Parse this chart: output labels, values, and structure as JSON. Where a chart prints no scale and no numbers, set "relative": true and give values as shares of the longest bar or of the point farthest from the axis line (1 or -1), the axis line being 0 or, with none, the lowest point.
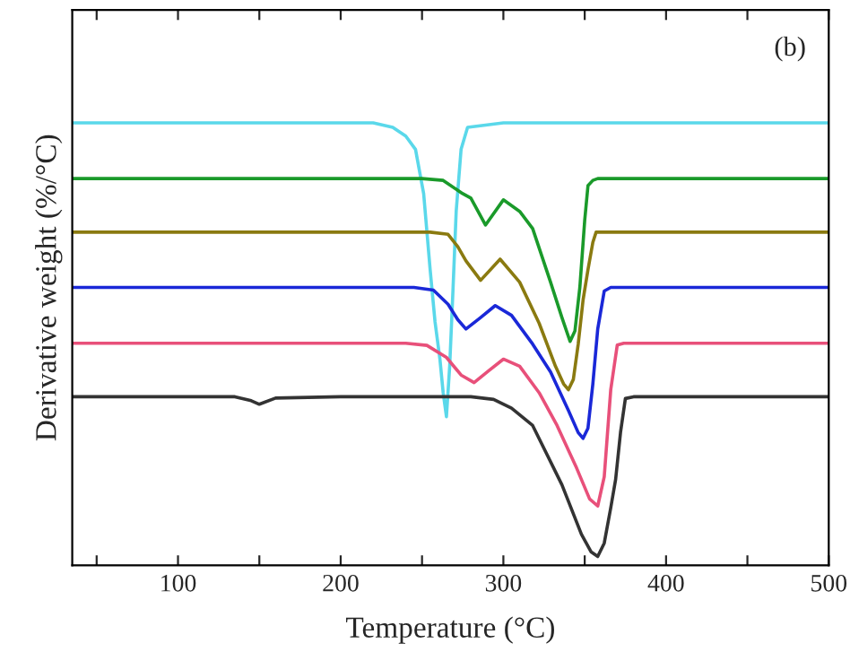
{
  "chart_data": {
    "type": "line",
    "relative": true,
    "xlabel": "Temperature (°C)",
    "ylabel": "Derivative weight (%/°C)",
    "annotations": [
      "(b)"
    ],
    "xlim": [
      35,
      500
    ],
    "xticks": [
      {
        "value": 50,
        "label": null
      },
      100,
      {
        "value": 150,
        "label": null
      },
      200,
      {
        "value": 250,
        "label": null
      },
      300,
      {
        "value": 350,
        "label": null
      },
      400,
      {
        "value": 450,
        "label": null
      },
      500
    ],
    "grid": false,
    "legend": false,
    "marker": "none",
    "line_style": "solid",
    "series": [
      {
        "color": "#5ad8ea",
        "x": [
          35,
          220,
          232,
          240,
          246,
          251,
          255,
          258,
          261,
          263,
          265,
          267,
          269,
          271,
          274,
          278,
          300,
          500
        ],
        "values": [
          1.0,
          1.0,
          0.99,
          0.97,
          0.94,
          0.84,
          0.668,
          0.55,
          0.466,
          0.39,
          0.336,
          0.45,
          0.62,
          0.8,
          0.94,
          0.99,
          1.0,
          1.0
        ]
      },
      {
        "color": "#1a9a2a",
        "x": [
          35,
          250,
          263,
          275,
          280,
          289,
          300,
          310,
          318,
          329,
          336,
          341,
          344,
          347,
          350,
          352,
          355,
          358,
          500
        ],
        "values": [
          0.874,
          0.874,
          0.87,
          0.84,
          0.83,
          0.769,
          0.826,
          0.8,
          0.761,
          0.64,
          0.56,
          0.506,
          0.53,
          0.628,
          0.78,
          0.858,
          0.87,
          0.874,
          0.874
        ]
      },
      {
        "color": "#8a7a10",
        "x": [
          35,
          255,
          266,
          272,
          277,
          286,
          298,
          310,
          322,
          332,
          337,
          340,
          343,
          346,
          349,
          352,
          355,
          357,
          500
        ],
        "values": [
          0.753,
          0.753,
          0.748,
          0.72,
          0.688,
          0.644,
          0.692,
          0.64,
          0.547,
          0.45,
          0.41,
          0.397,
          0.42,
          0.5,
          0.6,
          0.668,
          0.73,
          0.753,
          0.753
        ]
      },
      {
        "color": "#1a28d8",
        "x": [
          35,
          245,
          257,
          266,
          272,
          277,
          286,
          295,
          305,
          318,
          329,
          340,
          346,
          349,
          352,
          355,
          358,
          362,
          366,
          500
        ],
        "values": [
          0.628,
          0.628,
          0.622,
          0.59,
          0.555,
          0.534,
          0.56,
          0.587,
          0.565,
          0.5,
          0.437,
          0.35,
          0.3,
          0.287,
          0.31,
          0.41,
          0.534,
          0.62,
          0.628,
          0.628
        ]
      },
      {
        "color": "#e8507a",
        "x": [
          35,
          240,
          253,
          265,
          274,
          282,
          291,
          300,
          310,
          322,
          333,
          345,
          353,
          358,
          362,
          366,
          370,
          374,
          500
        ],
        "values": [
          0.502,
          0.502,
          0.497,
          0.47,
          0.43,
          0.413,
          0.44,
          0.466,
          0.45,
          0.39,
          0.316,
          0.22,
          0.15,
          0.134,
          0.2,
          0.397,
          0.498,
          0.502,
          0.502
        ]
      },
      {
        "color": "#333333",
        "x": [
          35,
          135,
          145,
          150,
          160,
          200,
          280,
          294,
          305,
          318,
          336,
          348,
          354,
          358,
          362,
          366,
          369,
          372,
          375,
          380,
          500
        ],
        "values": [
          0.381,
          0.381,
          0.372,
          0.364,
          0.378,
          0.381,
          0.381,
          0.375,
          0.355,
          0.316,
          0.182,
          0.07,
          0.03,
          0.02,
          0.05,
          0.13,
          0.194,
          0.3,
          0.377,
          0.381,
          0.381
        ]
      }
    ]
  }
}
